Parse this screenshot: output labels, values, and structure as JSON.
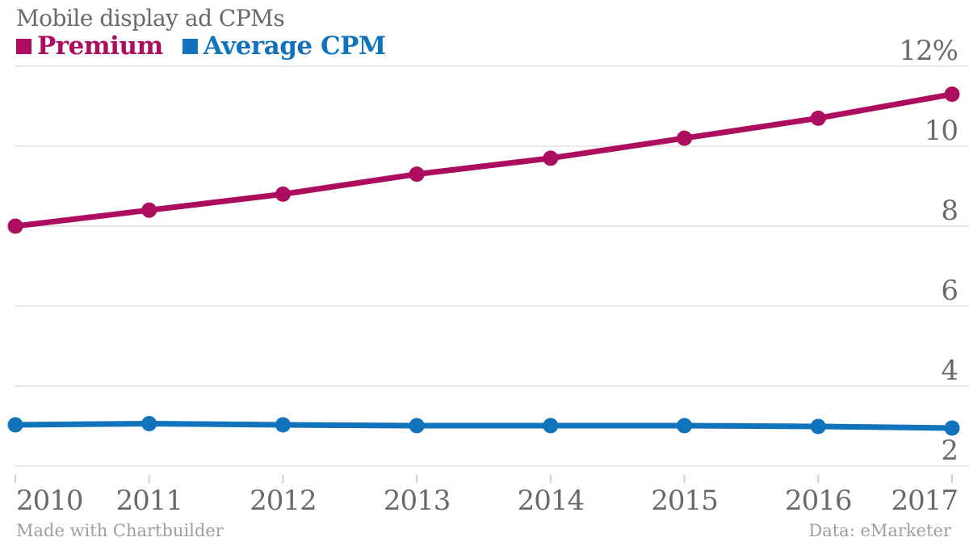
{
  "title": "Mobile display ad CPMs",
  "legend": {
    "items": [
      {
        "label": "Premium",
        "color": "#ad0d5e"
      },
      {
        "label": "Average CPM",
        "color": "#1173bc"
      }
    ]
  },
  "footer": {
    "left": "Made with Chartbuilder",
    "right": "Data: eMarketer"
  },
  "colors": {
    "background": "#ffffff",
    "title_text": "#6a6a6a",
    "axis_label": "#6a6a6a",
    "gridline": "#e8e8e8",
    "tick": "#cfcfcf",
    "footer_text": "#9e9e9e",
    "premium_series": "#ad0d5e",
    "average_series": "#1173bc"
  },
  "chart_data": {
    "type": "line",
    "title": "Mobile display ad CPMs",
    "x": [
      2010,
      2011,
      2012,
      2013,
      2014,
      2015,
      2016,
      2017
    ],
    "xticklabels": [
      "2010",
      "2011",
      "2012",
      "2013",
      "2014",
      "2015",
      "2016",
      "2017"
    ],
    "series": [
      {
        "name": "Premium",
        "color": "#ad0d5e",
        "values": [
          8.0,
          8.4,
          8.8,
          9.3,
          9.7,
          10.2,
          10.7,
          11.3
        ]
      },
      {
        "name": "Average CPM",
        "color": "#1173bc",
        "values": [
          3.03,
          3.06,
          3.03,
          3.01,
          3.01,
          3.01,
          2.99,
          2.95
        ]
      }
    ],
    "xlabel": "",
    "ylabel": "",
    "ylim": [
      2,
      12
    ],
    "yticks": [
      2,
      4,
      6,
      8,
      10,
      12
    ],
    "yticklabels": [
      "2",
      "4",
      "6",
      "8",
      "10",
      "12%"
    ],
    "grid": true,
    "markers": true,
    "legend_position": "top-left",
    "credit": "Made with Chartbuilder",
    "source": "Data: eMarketer"
  }
}
